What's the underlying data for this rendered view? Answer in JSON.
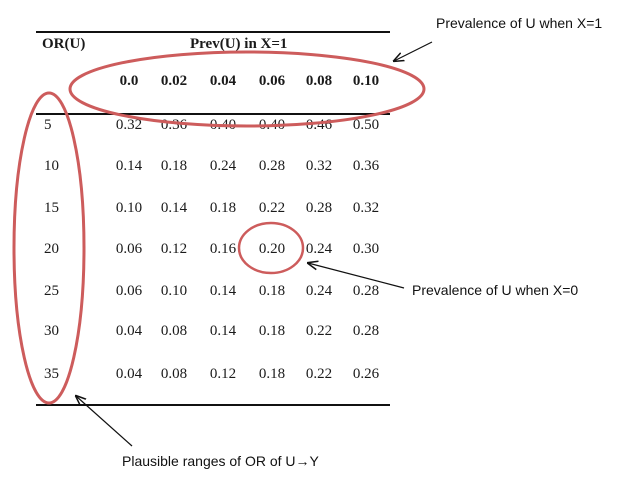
{
  "table": {
    "row_header": "OR(U)",
    "column_group_header": "Prev(U) in X=1",
    "column_values": [
      "0.0",
      "0.02",
      "0.04",
      "0.06",
      "0.08",
      "0.10"
    ],
    "rows": [
      {
        "label": "5",
        "cells": [
          "0.32",
          "0.36",
          "0.40",
          "0.40",
          "0.46",
          "0.50"
        ]
      },
      {
        "label": "10",
        "cells": [
          "0.14",
          "0.18",
          "0.24",
          "0.28",
          "0.32",
          "0.36"
        ]
      },
      {
        "label": "15",
        "cells": [
          "0.10",
          "0.14",
          "0.18",
          "0.22",
          "0.28",
          "0.32"
        ]
      },
      {
        "label": "20",
        "cells": [
          "0.06",
          "0.12",
          "0.16",
          "0.20",
          "0.24",
          "0.30"
        ]
      },
      {
        "label": "25",
        "cells": [
          "0.06",
          "0.10",
          "0.14",
          "0.18",
          "0.24",
          "0.28"
        ]
      },
      {
        "label": "30",
        "cells": [
          "0.04",
          "0.08",
          "0.14",
          "0.18",
          "0.22",
          "0.28"
        ]
      },
      {
        "label": "35",
        "cells": [
          "0.04",
          "0.08",
          "0.12",
          "0.18",
          "0.22",
          "0.26"
        ]
      }
    ]
  },
  "annotations": {
    "prevalence_x1": "Prevalence of U when X=1",
    "prevalence_x0": "Prevalence of U when X=0",
    "plausible_or": "Plausible ranges of OR of U→Y"
  },
  "colors": {
    "highlight": "#cd5c5c",
    "arrow": "#111111"
  }
}
